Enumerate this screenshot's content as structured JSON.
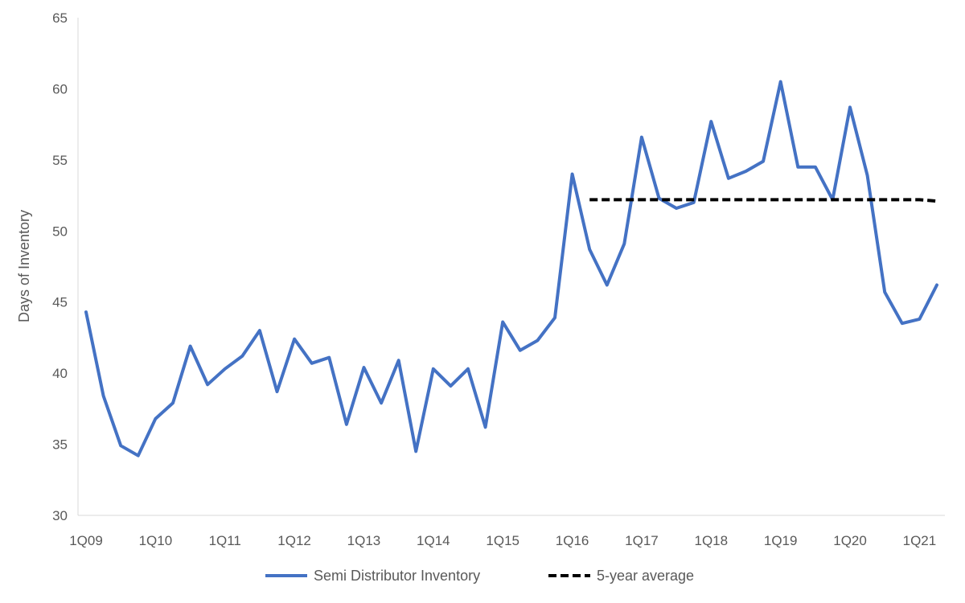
{
  "chart_data": {
    "type": "line",
    "ylabel": "Days of Inventory",
    "xlabel": "",
    "ylim": [
      30,
      65
    ],
    "yticks": [
      30,
      35,
      40,
      45,
      50,
      55,
      60,
      65
    ],
    "x": [
      "1Q09",
      "2Q09",
      "3Q09",
      "4Q09",
      "1Q10",
      "2Q10",
      "3Q10",
      "4Q10",
      "1Q11",
      "2Q11",
      "3Q11",
      "4Q11",
      "1Q12",
      "2Q12",
      "3Q12",
      "4Q12",
      "1Q13",
      "2Q13",
      "3Q13",
      "4Q13",
      "1Q14",
      "2Q14",
      "3Q14",
      "4Q14",
      "1Q15",
      "2Q15",
      "3Q15",
      "4Q15",
      "1Q16",
      "2Q16",
      "3Q16",
      "4Q16",
      "1Q17",
      "2Q17",
      "3Q17",
      "4Q17",
      "1Q18",
      "2Q18",
      "3Q18",
      "4Q18",
      "1Q19",
      "2Q19",
      "3Q19",
      "4Q19",
      "1Q20",
      "2Q20",
      "3Q20",
      "4Q20",
      "1Q21",
      "2Q21"
    ],
    "x_tick_labels": [
      "1Q09",
      "1Q10",
      "1Q11",
      "1Q12",
      "1Q13",
      "1Q14",
      "1Q15",
      "1Q16",
      "1Q17",
      "1Q18",
      "1Q19",
      "1Q20",
      "1Q21"
    ],
    "series": [
      {
        "name": "Semi Distributor Inventory",
        "color": "#4472C4",
        "style": "solid",
        "values": [
          44.3,
          38.4,
          34.9,
          34.2,
          36.8,
          37.9,
          41.9,
          39.2,
          40.3,
          41.2,
          43.0,
          38.7,
          42.4,
          40.7,
          41.1,
          36.4,
          40.4,
          37.9,
          40.9,
          34.5,
          40.3,
          39.1,
          40.3,
          36.2,
          43.6,
          41.6,
          42.3,
          43.9,
          54.0,
          48.7,
          46.2,
          49.1,
          56.6,
          52.3,
          51.6,
          52.0,
          57.7,
          53.7,
          54.2,
          54.9,
          60.5,
          54.5,
          54.5,
          52.2,
          58.7,
          53.9,
          45.7,
          43.5,
          43.8,
          46.2
        ]
      },
      {
        "name": "5-year average",
        "color": "#000000",
        "style": "dashed",
        "values": [
          null,
          null,
          null,
          null,
          null,
          null,
          null,
          null,
          null,
          null,
          null,
          null,
          null,
          null,
          null,
          null,
          null,
          null,
          null,
          null,
          null,
          null,
          null,
          null,
          null,
          null,
          null,
          null,
          null,
          52.2,
          52.2,
          52.2,
          52.2,
          52.2,
          52.2,
          52.2,
          52.2,
          52.2,
          52.2,
          52.2,
          52.2,
          52.2,
          52.2,
          52.2,
          52.2,
          52.2,
          52.2,
          52.2,
          52.2,
          52.1
        ]
      }
    ],
    "legend_position": "bottom",
    "grid": false
  }
}
